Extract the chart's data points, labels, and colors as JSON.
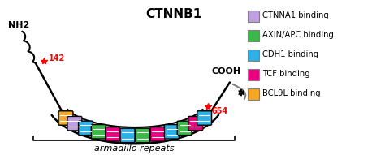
{
  "title": "CTNNB1",
  "legend_items": [
    {
      "label": "CTNNA1 binding",
      "color": "#bf9fdf"
    },
    {
      "label": "AXIN/APC binding",
      "color": "#3cb84a"
    },
    {
      "label": "CDH1 binding",
      "color": "#2bb0e8"
    },
    {
      "label": "TCF binding",
      "color": "#e8007f"
    },
    {
      "label": "BCL9L binding",
      "color": "#f5a623"
    }
  ],
  "label_nh2": "NH2",
  "label_cooh": "COOH",
  "label_142": "142",
  "label_654": "654",
  "label_armadillo": "armadillo repeats",
  "background_color": "#ffffff",
  "repeat_colors": [
    "#bf9fdf",
    "#2bb0e8",
    "#3cb84a",
    "#e8007f",
    "#2bb0e8",
    "#3cb84a",
    "#e8007f",
    "#2bb0e8",
    "#3cb84a",
    "#e8007f",
    "#2bb0e8",
    "#bf9fdf"
  ],
  "n_repeats": 12
}
